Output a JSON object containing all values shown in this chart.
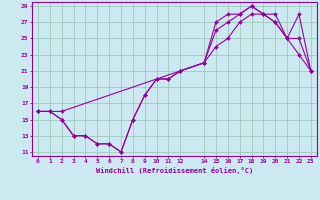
{
  "xlabel": "Windchill (Refroidissement éolien,°C)",
  "bg_color": "#cce8f0",
  "line_color": "#990099",
  "grid_color": "#99ccbb",
  "xlim": [
    -0.5,
    23.5
  ],
  "ylim": [
    10.5,
    29.5
  ],
  "xticks": [
    0,
    1,
    2,
    3,
    4,
    5,
    6,
    7,
    8,
    9,
    10,
    11,
    12,
    14,
    15,
    16,
    17,
    18,
    19,
    20,
    21,
    22,
    23
  ],
  "yticks": [
    11,
    13,
    15,
    17,
    19,
    21,
    23,
    25,
    27,
    29
  ],
  "line1_x": [
    0,
    1,
    2,
    3,
    4,
    5,
    6,
    7,
    8,
    9,
    10,
    11,
    12,
    14,
    15,
    16,
    17,
    18,
    19,
    20,
    21,
    22,
    23
  ],
  "line1_y": [
    16,
    16,
    15,
    13,
    13,
    12,
    12,
    11,
    15,
    18,
    20,
    20,
    21,
    22,
    27,
    28,
    28,
    29,
    28,
    28,
    25,
    23,
    21
  ],
  "line2_x": [
    0,
    1,
    2,
    3,
    4,
    5,
    6,
    7,
    8,
    9,
    10,
    11,
    12,
    14,
    15,
    16,
    17,
    18,
    19,
    20,
    21,
    22,
    23
  ],
  "line2_y": [
    16,
    16,
    15,
    13,
    13,
    12,
    12,
    11,
    15,
    18,
    20,
    20,
    21,
    22,
    26,
    27,
    28,
    29,
    28,
    27,
    25,
    25,
    21
  ],
  "line3_x": [
    0,
    2,
    14,
    15,
    16,
    17,
    18,
    19,
    20,
    21,
    22,
    23
  ],
  "line3_y": [
    16,
    16,
    22,
    24,
    25,
    27,
    28,
    28,
    27,
    25,
    28,
    21
  ]
}
